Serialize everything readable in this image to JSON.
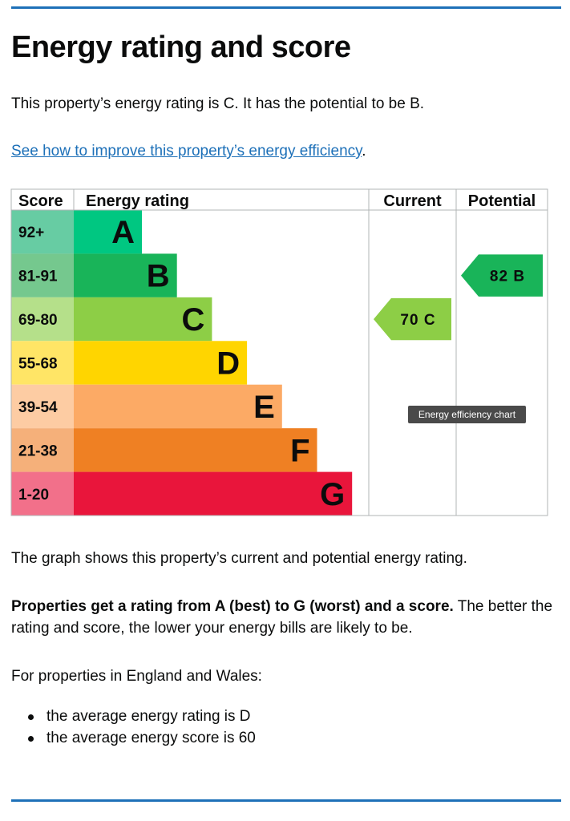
{
  "page": {
    "title": "Energy rating and score",
    "rating_text": "This property’s energy rating is C. It has the potential to be B.",
    "link_text": "See how to improve this property’s energy efficiency",
    "link_suffix": ".",
    "graph_text": "The graph shows this property’s current and potential energy rating.",
    "props_bold": "Properties get a rating from A (best) to G (worst) and a score.",
    "props_rest": " The better the rating and score, the lower your energy bills are likely to be.",
    "england_text": "For properties in England and Wales:",
    "averages": [
      "the average energy rating is D",
      "the average energy score is 60"
    ],
    "tooltip": "Energy efficiency chart"
  },
  "chart_data": {
    "type": "bar",
    "headers": {
      "score": "Score",
      "rating": "Energy rating",
      "current": "Current",
      "potential": "Potential"
    },
    "bands": [
      {
        "score": "92+",
        "letter": "A",
        "color": "#00c781",
        "score_bg": "#67cca3"
      },
      {
        "score": "81-91",
        "letter": "B",
        "color": "#19b459",
        "score_bg": "#75c88e"
      },
      {
        "score": "69-80",
        "letter": "C",
        "color": "#8dce46",
        "score_bg": "#b5e08a"
      },
      {
        "score": "55-68",
        "letter": "D",
        "color": "#ffd500",
        "score_bg": "#ffe566"
      },
      {
        "score": "39-54",
        "letter": "E",
        "color": "#fcaa65",
        "score_bg": "#fdcca3"
      },
      {
        "score": "21-38",
        "letter": "F",
        "color": "#ef8023",
        "score_bg": "#f5b07a"
      },
      {
        "score": "1-20",
        "letter": "G",
        "color": "#e9153b",
        "score_bg": "#f2708a"
      }
    ],
    "current": {
      "score": 70,
      "letter": "C",
      "label": "70 C",
      "color": "#8dce46"
    },
    "potential": {
      "score": 82,
      "letter": "B",
      "label": "82 B",
      "color": "#19b459"
    }
  }
}
